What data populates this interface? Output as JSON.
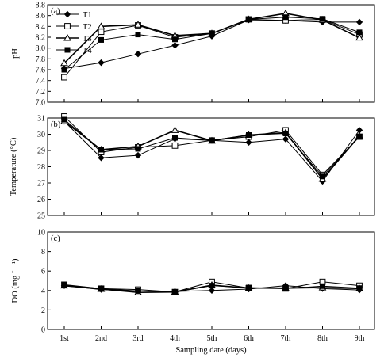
{
  "chart_data": {
    "type": "line",
    "categories": [
      "1st",
      "2nd",
      "3rd",
      "4th",
      "5th",
      "6th",
      "7th",
      "8th",
      "9th"
    ],
    "xlabel": "Sampling date (days)",
    "legend": [
      "T1",
      "T2",
      "T3",
      "T4"
    ],
    "legend_position": "top-left",
    "panels": [
      {
        "label": "(a)",
        "ylabel": "pH",
        "ylim": [
          7.0,
          8.8
        ],
        "yticks": [
          "7.0",
          "7.2",
          "7.4",
          "7.6",
          "7.8",
          "8.0",
          "8.2",
          "8.4",
          "8.6",
          "8.8"
        ],
        "series": [
          {
            "name": "T1",
            "marker": "diamond",
            "values": [
              7.62,
              7.73,
              7.89,
              8.05,
              8.22,
              8.52,
              8.51,
              8.48,
              8.48
            ]
          },
          {
            "name": "T2",
            "marker": "square-open",
            "values": [
              7.46,
              8.3,
              8.42,
              8.2,
              8.27,
              8.53,
              8.51,
              8.53,
              8.25
            ]
          },
          {
            "name": "T3",
            "marker": "triangle-open",
            "values": [
              7.72,
              8.4,
              8.43,
              8.23,
              8.27,
              8.53,
              8.64,
              8.52,
              8.19
            ]
          },
          {
            "name": "T4",
            "marker": "square",
            "values": [
              7.6,
              8.15,
              8.25,
              8.16,
              8.27,
              8.53,
              8.57,
              8.54,
              8.29
            ]
          }
        ]
      },
      {
        "label": "(b)",
        "ylabel": "Temperature (°C)",
        "ylim": [
          25,
          31
        ],
        "yticks": [
          "25",
          "26",
          "27",
          "28",
          "29",
          "30",
          "31"
        ],
        "series": [
          {
            "name": "T1",
            "marker": "diamond",
            "values": [
              30.8,
              28.55,
              28.7,
              29.72,
              29.62,
              29.5,
              29.7,
              27.1,
              30.25
            ]
          },
          {
            "name": "T2",
            "marker": "square-open",
            "values": [
              31.1,
              28.9,
              29.2,
              29.3,
              29.62,
              29.85,
              30.25,
              27.5,
              29.85
            ]
          },
          {
            "name": "T3",
            "marker": "triangle-open",
            "values": [
              30.8,
              29.05,
              29.25,
              30.25,
              29.6,
              29.95,
              30.1,
              27.25,
              29.9
            ]
          },
          {
            "name": "T4",
            "marker": "square",
            "values": [
              30.9,
              29.05,
              29.1,
              29.78,
              29.62,
              29.95,
              30.05,
              27.4,
              29.85
            ]
          }
        ]
      },
      {
        "label": "(c)",
        "ylabel": "DO (mg L⁻¹)",
        "ylim": [
          0,
          10
        ],
        "yticks": [
          "0",
          "2",
          "4",
          "6",
          "8",
          "10"
        ],
        "series": [
          {
            "name": "T1",
            "marker": "diamond",
            "values": [
              4.5,
              4.1,
              3.95,
              3.9,
              4.0,
              4.15,
              4.5,
              4.2,
              4.05
            ]
          },
          {
            "name": "T2",
            "marker": "square-open",
            "values": [
              4.6,
              4.2,
              4.1,
              3.85,
              4.9,
              4.25,
              4.2,
              4.9,
              4.5
            ]
          },
          {
            "name": "T3",
            "marker": "triangle-open",
            "values": [
              4.5,
              4.15,
              3.8,
              3.85,
              4.55,
              4.25,
              4.25,
              4.3,
              4.2
            ]
          },
          {
            "name": "T4",
            "marker": "square",
            "values": [
              4.55,
              4.2,
              3.95,
              3.85,
              4.5,
              4.3,
              4.2,
              4.45,
              4.25
            ]
          }
        ]
      }
    ]
  }
}
